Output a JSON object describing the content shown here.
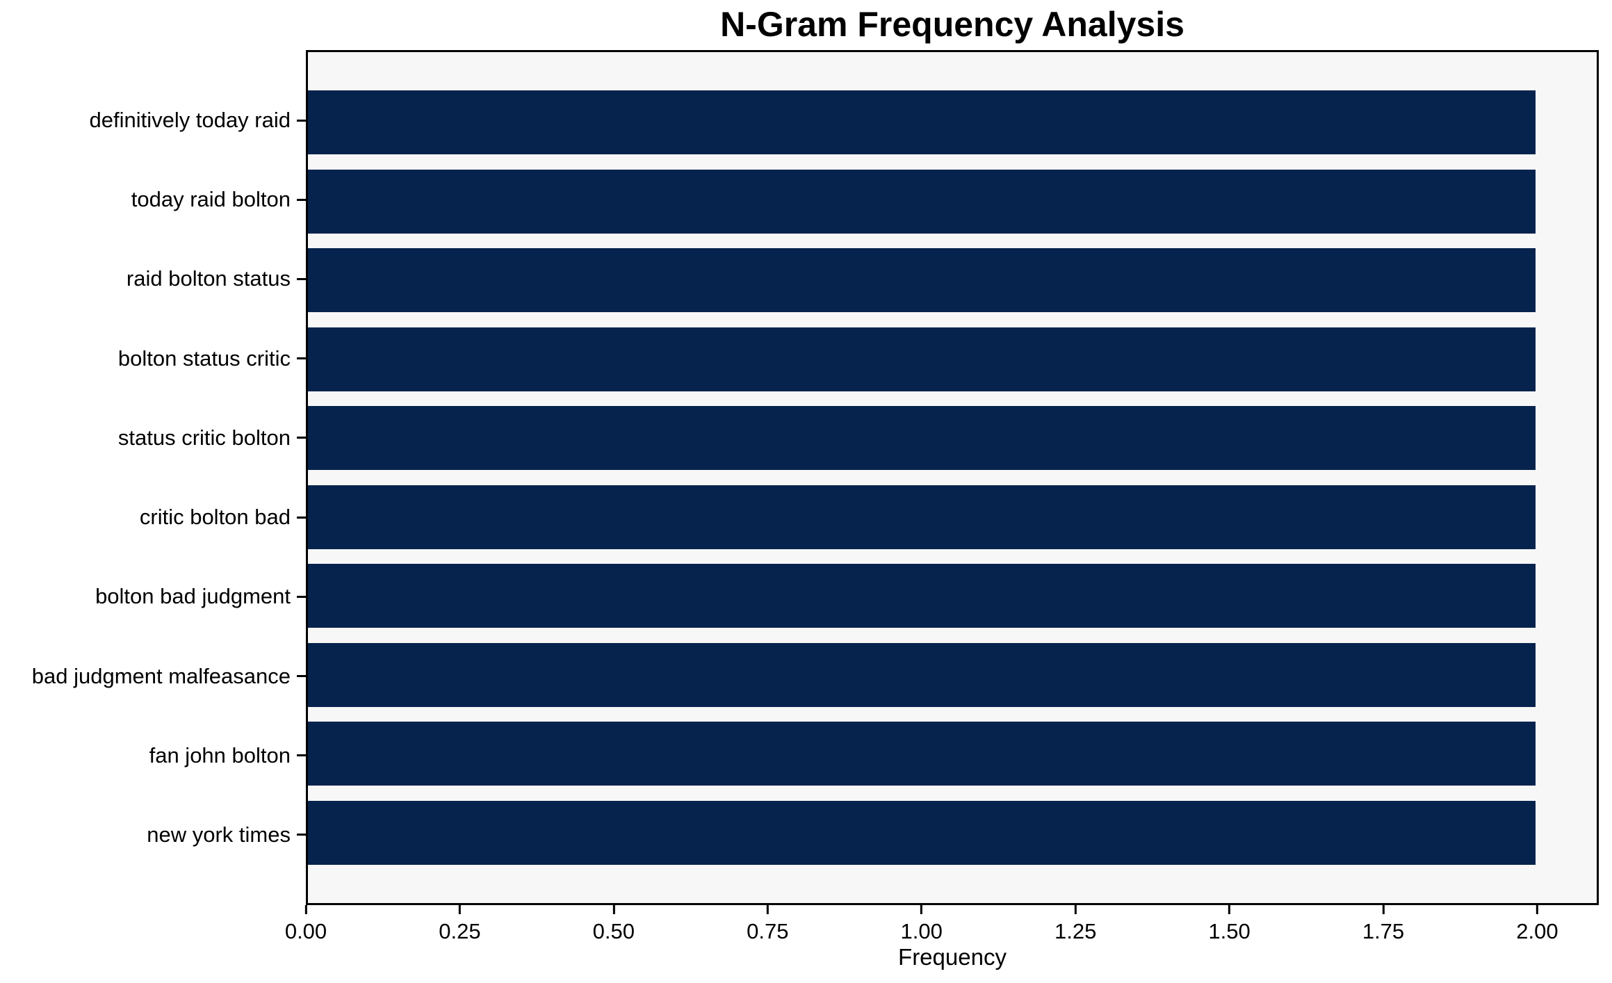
{
  "chart_data": {
    "type": "bar",
    "orientation": "horizontal",
    "title": "N-Gram Frequency Analysis",
    "xlabel": "Frequency",
    "ylabel": "",
    "categories": [
      "definitively today raid",
      "today raid bolton",
      "raid bolton status",
      "bolton status critic",
      "status critic bolton",
      "critic bolton bad",
      "bolton bad judgment",
      "bad judgment malfeasance",
      "fan john bolton",
      "new york times"
    ],
    "values": [
      2.0,
      2.0,
      2.0,
      2.0,
      2.0,
      2.0,
      2.0,
      2.0,
      2.0,
      2.0
    ],
    "xticks": [
      0.0,
      0.25,
      0.5,
      0.75,
      1.0,
      1.25,
      1.5,
      1.75,
      2.0
    ],
    "xtick_labels": [
      "0.00",
      "0.25",
      "0.50",
      "0.75",
      "1.00",
      "1.25",
      "1.50",
      "1.75",
      "2.00"
    ],
    "xlim": [
      0,
      2.1
    ],
    "grid": false,
    "legend": false,
    "colors": {
      "bar": "#06234d",
      "plot_background": "#f7f7f7",
      "axis": "#000000",
      "figure_background": "#ffffff"
    }
  }
}
